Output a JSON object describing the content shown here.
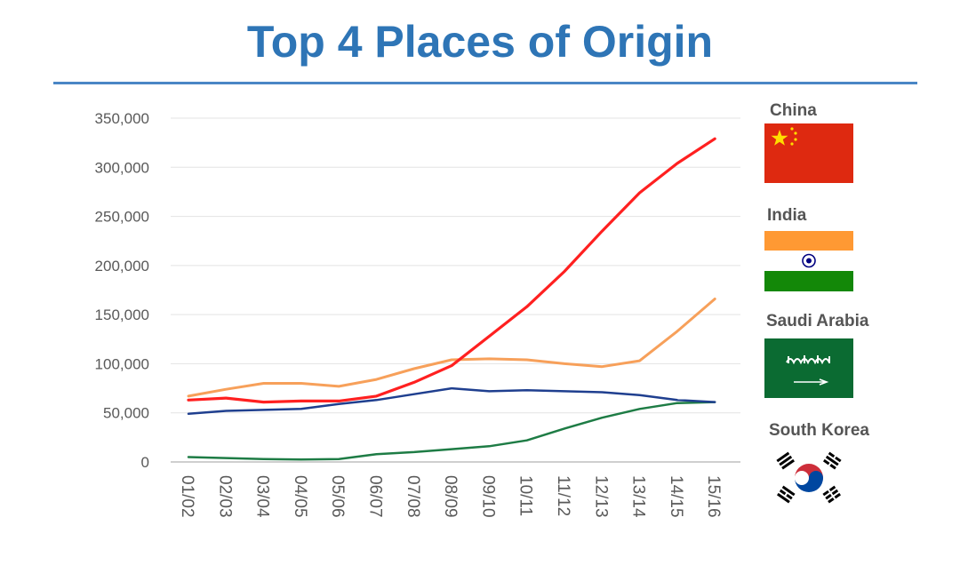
{
  "title": "Top 4 Places of Origin",
  "chart_data": {
    "type": "line",
    "categories": [
      "01/02",
      "02/03",
      "03/04",
      "04/05",
      "05/06",
      "06/07",
      "07/08",
      "08/09",
      "09/10",
      "10/11",
      "11/12",
      "12/13",
      "13/14",
      "14/15",
      "15/16"
    ],
    "y_ticks": [
      "0",
      "50,000",
      "100,000",
      "150,000",
      "200,000",
      "250,000",
      "300,000",
      "350,000"
    ],
    "ylim": [
      0,
      350000
    ],
    "y_tick_step": 50000,
    "grid": true,
    "legend_position": "right",
    "series": [
      {
        "name": "China",
        "color": "#ff2020",
        "width": 3.2,
        "values": [
          63000,
          65000,
          61000,
          62000,
          62000,
          67000,
          81000,
          98000,
          128000,
          158000,
          194000,
          235000,
          274000,
          304000,
          329000
        ]
      },
      {
        "name": "India",
        "color": "#f7a05a",
        "width": 3,
        "values": [
          67000,
          74000,
          80000,
          80000,
          77000,
          84000,
          95000,
          104000,
          105000,
          104000,
          100000,
          97000,
          103000,
          133000,
          166000
        ]
      },
      {
        "name": "Saudi Arabia",
        "color": "#1e7c45",
        "width": 2.5,
        "values": [
          5000,
          4000,
          3000,
          2500,
          3000,
          8000,
          10000,
          13000,
          16000,
          22000,
          34000,
          45000,
          54000,
          60000,
          61000
        ]
      },
      {
        "name": "South Korea",
        "color": "#1f3f8f",
        "width": 2.5,
        "values": [
          49000,
          52000,
          53000,
          54000,
          59000,
          63000,
          69000,
          75000,
          72000,
          73000,
          72000,
          71000,
          68000,
          63000,
          61000
        ]
      }
    ]
  },
  "legend": {
    "china": {
      "label": "China",
      "colors": {
        "red": "#de2910",
        "star": "#ffde00"
      }
    },
    "india": {
      "label": "India",
      "colors": {
        "saffron": "#ff9933",
        "white": "#ffffff",
        "green": "#138808",
        "chakra": "#000080"
      }
    },
    "saudi": {
      "label": "Saudi Arabia",
      "colors": {
        "green": "#0b6b32",
        "script": "#ffffff"
      }
    },
    "korea": {
      "label": "South Korea",
      "colors": {
        "red": "#cd2e3a",
        "blue": "#0047a0",
        "trigram": "#000000"
      }
    }
  }
}
